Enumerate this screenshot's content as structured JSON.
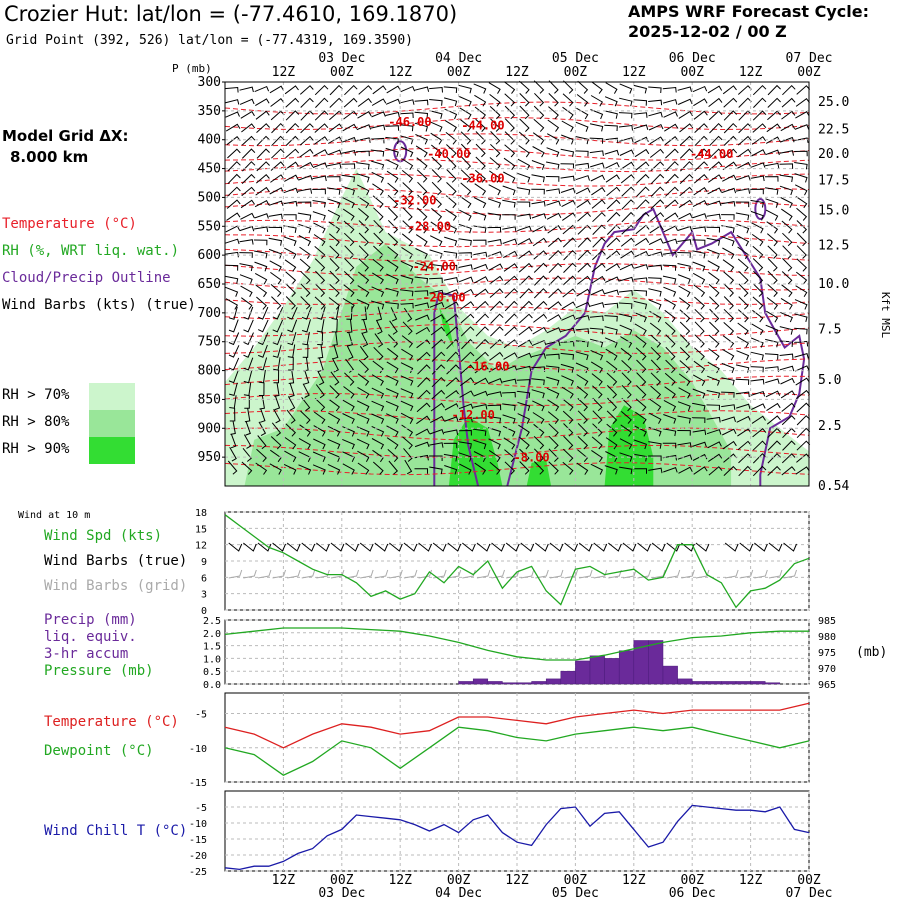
{
  "header": {
    "title": "Crozier Hut:  lat/lon = (-77.4610, 169.1870)",
    "subtitle": "Grid Point (392, 526) lat/lon = (-77.4319, 169.3590)",
    "cycle_line1": "AMPS WRF Forecast Cycle:",
    "cycle_line2": "2025-12-02 / 00  Z"
  },
  "sidebar": {
    "model_grid_label": "Model Grid ΔX:",
    "model_grid_value": "8.000 km",
    "legend": [
      {
        "text": "Temperature (°C)",
        "color": "#e8202a"
      },
      {
        "text": "RH (%, WRT liq. wat.)",
        "color": "#22a822"
      },
      {
        "text": "Cloud/Precip Outline",
        "color": "#6a2a9a"
      },
      {
        "text": "Wind Barbs (kts) (true)",
        "color": "#000000"
      }
    ],
    "rh_legend": [
      {
        "text": "RH > 70%",
        "color": "#ccf5cc"
      },
      {
        "text": "RH > 80%",
        "color": "#99e699"
      },
      {
        "text": "RH > 90%",
        "color": "#33dd33"
      }
    ]
  },
  "time_axis": {
    "hour_labels": [
      "12Z",
      "00Z",
      "12Z",
      "00Z",
      "12Z",
      "00Z",
      "12Z",
      "00Z",
      "12Z",
      "00Z"
    ],
    "hour_values": [
      12,
      24,
      36,
      48,
      60,
      72,
      84,
      96,
      108,
      120
    ],
    "day_labels": [
      "03 Dec",
      "04 Dec",
      "05 Dec",
      "06 Dec",
      "07 Dec"
    ],
    "day_values": [
      24,
      48,
      72,
      96,
      120
    ],
    "range_hours": [
      0,
      120
    ]
  },
  "cross_section": {
    "y_unit_label": "P (mb)",
    "right_axis_label": "Kft MSL",
    "pressure_ticks": [
      300,
      350,
      400,
      450,
      500,
      550,
      600,
      650,
      700,
      750,
      800,
      850,
      900,
      950
    ],
    "height_ticks": [
      {
        "label": "25.0",
        "p": 335
      },
      {
        "label": "22.5",
        "p": 382
      },
      {
        "label": "20.0",
        "p": 425
      },
      {
        "label": "17.5",
        "p": 471
      },
      {
        "label": "15.0",
        "p": 523
      },
      {
        "label": "12.5",
        "p": 583
      },
      {
        "label": "10.0",
        "p": 650
      },
      {
        "label": "7.5",
        "p": 729
      },
      {
        "label": "5.0",
        "p": 816
      },
      {
        "label": "2.5",
        "p": 896
      },
      {
        "label": "0.54",
        "p": 1000
      }
    ],
    "temp_labels": [
      {
        "text": "-46.00",
        "h": 38,
        "p": 369
      },
      {
        "text": "-44.00",
        "h": 53,
        "p": 375
      },
      {
        "text": "-40.00",
        "h": 46,
        "p": 425
      },
      {
        "text": "-44.00",
        "h": 100,
        "p": 425
      },
      {
        "text": "-36.00",
        "h": 53,
        "p": 467
      },
      {
        "text": "-32.00",
        "h": 39,
        "p": 505
      },
      {
        "text": "-28.00",
        "h": 42,
        "p": 550
      },
      {
        "text": "-24.00",
        "h": 43,
        "p": 620
      },
      {
        "text": "-20.00",
        "h": 45,
        "p": 673
      },
      {
        "text": "-16.00",
        "h": 54,
        "p": 793
      },
      {
        "text": "-12.00",
        "h": 51,
        "p": 877
      },
      {
        "text": "-8.00",
        "h": 63,
        "p": 951
      }
    ]
  },
  "wind_panel": {
    "title": "Wind at 10 m",
    "labels": [
      {
        "text": "Wind Spd (kts)",
        "color": "#22a822"
      },
      {
        "text": "Wind Barbs (true)",
        "color": "#000000"
      },
      {
        "text": "Wind Barbs (grid)",
        "color": "#aaaaaa"
      }
    ],
    "y_ticks": [
      0,
      3,
      6,
      9,
      12,
      15,
      18
    ]
  },
  "precip_panel": {
    "labels": [
      {
        "text": "Precip (mm)",
        "color": "#6a2a9a"
      },
      {
        "text": "liq. equiv.",
        "color": "#6a2a9a"
      },
      {
        "text": "3-hr accum",
        "color": "#6a2a9a"
      },
      {
        "text": "Pressure (mb)",
        "color": "#22a822"
      }
    ],
    "left_ticks": [
      "0.0",
      "0.5",
      "1.0",
      "1.5",
      "2.0",
      "2.5"
    ],
    "right_ticks": [
      "965",
      "970",
      "975",
      "980",
      "985"
    ],
    "right_unit": "(mb)"
  },
  "temp_panel": {
    "labels": [
      {
        "text": "Temperature (°C)",
        "color": "#dd2020"
      },
      {
        "text": "Dewpoint (°C)",
        "color": "#22a822"
      }
    ],
    "y_ticks": [
      -15,
      -10,
      -5
    ]
  },
  "chill_panel": {
    "labels": [
      {
        "text": "Wind Chill T (°C)",
        "color": "#1a1aa8"
      }
    ],
    "y_ticks": [
      -25,
      -20,
      -15,
      -10,
      -5
    ]
  },
  "chart_data": [
    {
      "type": "line",
      "panel": "wind_speed_10m",
      "xlabel": "",
      "ylabel": "",
      "x_unit": "forecast hour",
      "ylim": [
        0,
        18
      ],
      "series": [
        {
          "name": "Wind Spd (kts)",
          "color": "#22a822",
          "x": [
            0,
            3,
            6,
            9,
            12,
            15,
            18,
            21,
            24,
            27,
            30,
            33,
            36,
            39,
            42,
            45,
            48,
            51,
            54,
            57,
            60,
            63,
            66,
            69,
            72,
            75,
            78,
            81,
            84,
            87,
            90,
            93,
            96,
            99,
            102,
            105,
            108,
            111,
            114,
            117,
            120
          ],
          "y": [
            17.5,
            15.5,
            13.5,
            11.5,
            10.5,
            9,
            7.5,
            6.5,
            6.5,
            5,
            2.5,
            3.5,
            2,
            3,
            7,
            5,
            8,
            6.5,
            9,
            4,
            7,
            8,
            3.5,
            1,
            7.5,
            8,
            6.5,
            7,
            7.5,
            5.5,
            6,
            12,
            12,
            6.5,
            5,
            0.5,
            3.5,
            4,
            5.5,
            8.5,
            9.5
          ]
        }
      ]
    },
    {
      "type": "bar",
      "panel": "precip_3hr",
      "x_unit": "forecast hour",
      "ylim": [
        0,
        2.5
      ],
      "series": [
        {
          "name": "Precip (mm)",
          "color": "#6a2a9a",
          "x": [
            48,
            51,
            54,
            57,
            60,
            63,
            66,
            69,
            72,
            75,
            78,
            81,
            84,
            87,
            90,
            93,
            96,
            99,
            102,
            105,
            108,
            111
          ],
          "y": [
            0.1,
            0.2,
            0.1,
            0.05,
            0.05,
            0.1,
            0.2,
            0.5,
            0.9,
            1.1,
            1.0,
            1.3,
            1.7,
            1.7,
            0.7,
            0.2,
            0.1,
            0.1,
            0.1,
            0.1,
            0.1,
            0.05
          ]
        }
      ]
    },
    {
      "type": "line",
      "panel": "surface_pressure",
      "x_unit": "forecast hour",
      "ylim": [
        965,
        985
      ],
      "series": [
        {
          "name": "Pressure (mb)",
          "color": "#22a822",
          "x": [
            0,
            6,
            12,
            18,
            24,
            30,
            36,
            42,
            48,
            54,
            60,
            66,
            72,
            78,
            84,
            90,
            96,
            102,
            108,
            114,
            120
          ],
          "y": [
            980.5,
            981.5,
            982.5,
            982.5,
            982.5,
            982,
            981.5,
            980,
            978,
            975.5,
            973.5,
            972.5,
            972.5,
            974,
            976,
            978,
            979.5,
            980,
            981,
            981.5,
            981.5
          ]
        }
      ]
    },
    {
      "type": "line",
      "panel": "temperature_dewpoint",
      "x_unit": "forecast hour",
      "ylim": [
        -15,
        -2
      ],
      "series": [
        {
          "name": "Temperature (°C)",
          "color": "#dd2020",
          "x": [
            0,
            6,
            12,
            18,
            24,
            30,
            36,
            42,
            48,
            54,
            60,
            66,
            72,
            78,
            84,
            90,
            96,
            102,
            108,
            114,
            120
          ],
          "y": [
            -7,
            -8,
            -10,
            -8,
            -6.5,
            -7,
            -8,
            -7.5,
            -5.5,
            -5.5,
            -6,
            -6.5,
            -5.5,
            -5,
            -4.5,
            -5,
            -4.5,
            -4.5,
            -4.5,
            -4.5,
            -3.5
          ]
        },
        {
          "name": "Dewpoint (°C)",
          "color": "#22a822",
          "x": [
            0,
            6,
            12,
            18,
            24,
            30,
            36,
            42,
            48,
            54,
            60,
            66,
            72,
            78,
            84,
            90,
            96,
            102,
            108,
            114,
            120
          ],
          "y": [
            -10,
            -11,
            -14,
            -12,
            -9,
            -10,
            -13,
            -10,
            -7,
            -7.5,
            -8.5,
            -9,
            -8,
            -7.5,
            -7,
            -7.5,
            -7,
            -8,
            -9,
            -10,
            -9
          ]
        }
      ]
    },
    {
      "type": "line",
      "panel": "wind_chill",
      "x_unit": "forecast hour",
      "ylim": [
        -25,
        0
      ],
      "series": [
        {
          "name": "Wind Chill T (°C)",
          "color": "#1a1aa8",
          "x": [
            0,
            3,
            6,
            9,
            12,
            15,
            18,
            21,
            24,
            27,
            30,
            33,
            36,
            39,
            42,
            45,
            48,
            51,
            54,
            57,
            60,
            63,
            66,
            69,
            72,
            75,
            78,
            81,
            84,
            87,
            90,
            93,
            96,
            99,
            102,
            105,
            108,
            111,
            114,
            117,
            120
          ],
          "y": [
            -24,
            -24.5,
            -23.5,
            -23.5,
            -22,
            -19.5,
            -18,
            -14,
            -12,
            -7.5,
            -8,
            -8.5,
            -9,
            -10.5,
            -12.5,
            -10.5,
            -13,
            -9,
            -7.5,
            -13,
            -16,
            -17,
            -10.5,
            -5.5,
            -5,
            -11,
            -7,
            -6.5,
            -12,
            -17.5,
            -16,
            -9.5,
            -4.5,
            -5,
            -5.5,
            -6,
            -6,
            -6.5,
            -5,
            -12,
            -13
          ]
        }
      ]
    }
  ]
}
